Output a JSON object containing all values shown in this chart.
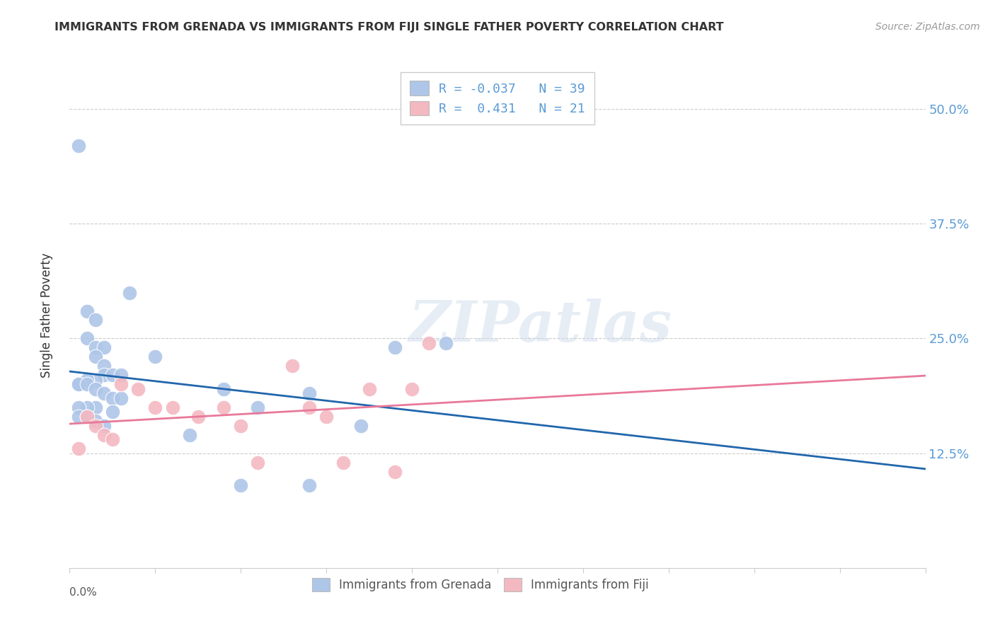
{
  "title": "IMMIGRANTS FROM GRENADA VS IMMIGRANTS FROM FIJI SINGLE FATHER POVERTY CORRELATION CHART",
  "source": "Source: ZipAtlas.com",
  "ylabel": "Single Father Poverty",
  "ytick_labels": [
    "12.5%",
    "25.0%",
    "37.5%",
    "50.0%"
  ],
  "ytick_vals": [
    0.125,
    0.25,
    0.375,
    0.5
  ],
  "xlim": [
    0.0,
    0.05
  ],
  "ylim": [
    0.0,
    0.55
  ],
  "legend_label1": "Immigrants from Grenada",
  "legend_label2": "Immigrants from Fiji",
  "grenada_color": "#aec6e8",
  "fiji_color": "#f4b8c1",
  "grenada_line_color": "#2166ac",
  "fiji_line_color": "#e8799a",
  "watermark": "ZIPatlas",
  "grenada_x": [
    0.0005,
    0.001,
    0.0015,
    0.001,
    0.0015,
    0.002,
    0.0015,
    0.002,
    0.002,
    0.0025,
    0.0015,
    0.001,
    0.0005,
    0.0005,
    0.001,
    0.0015,
    0.002,
    0.0025,
    0.003,
    0.003,
    0.0025,
    0.0015,
    0.001,
    0.0005,
    0.0005,
    0.001,
    0.0015,
    0.002,
    0.0035,
    0.005,
    0.007,
    0.009,
    0.011,
    0.014,
    0.017,
    0.019,
    0.014,
    0.01,
    0.022
  ],
  "grenada_y": [
    0.46,
    0.28,
    0.27,
    0.25,
    0.24,
    0.24,
    0.23,
    0.22,
    0.21,
    0.21,
    0.205,
    0.205,
    0.2,
    0.2,
    0.2,
    0.195,
    0.19,
    0.185,
    0.185,
    0.21,
    0.17,
    0.175,
    0.175,
    0.175,
    0.165,
    0.165,
    0.16,
    0.155,
    0.3,
    0.23,
    0.145,
    0.195,
    0.175,
    0.19,
    0.155,
    0.24,
    0.09,
    0.09,
    0.245
  ],
  "fiji_x": [
    0.0005,
    0.001,
    0.0015,
    0.002,
    0.0025,
    0.003,
    0.004,
    0.005,
    0.006,
    0.0075,
    0.009,
    0.01,
    0.011,
    0.013,
    0.014,
    0.015,
    0.016,
    0.0175,
    0.019,
    0.02,
    0.021
  ],
  "fiji_y": [
    0.13,
    0.165,
    0.155,
    0.145,
    0.14,
    0.2,
    0.195,
    0.175,
    0.175,
    0.165,
    0.175,
    0.155,
    0.115,
    0.22,
    0.175,
    0.165,
    0.115,
    0.195,
    0.105,
    0.195,
    0.245
  ]
}
